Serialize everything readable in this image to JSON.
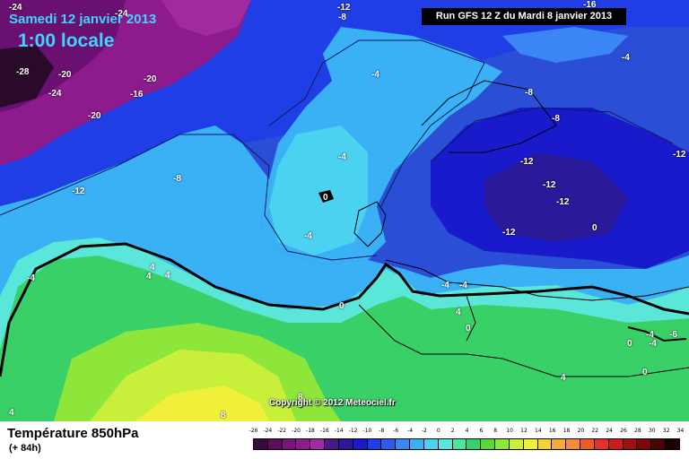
{
  "header": {
    "date": "Samedi 12 janvier 2013",
    "local_time": "1:00 locale",
    "run": "Run GFS 12 Z du Mardi 8 janvier 2013"
  },
  "footer": {
    "variable": "Température 850hPa",
    "lead_time": "(+ 84h)",
    "copyright": "Copyright © 2012 Meteociel.fr"
  },
  "legend": {
    "ticks": [
      "-26",
      "-24",
      "-22",
      "-20",
      "-18",
      "-16",
      "-14",
      "-12",
      "-10",
      "-8",
      "-6",
      "-4",
      "-2",
      "0",
      "2",
      "4",
      "6",
      "8",
      "10",
      "12",
      "14",
      "16",
      "18",
      "20",
      "22",
      "24",
      "26",
      "28",
      "30",
      "32",
      "34"
    ],
    "colors": [
      "#3a0a3a",
      "#5c0d5c",
      "#7a147a",
      "#8e1b8e",
      "#a02aa0",
      "#4a1a8a",
      "#2a1a9a",
      "#1a1acd",
      "#1f3ee6",
      "#2a5cf0",
      "#3a86f5",
      "#3ab0f5",
      "#4ad2f0",
      "#5ae6d8",
      "#4ae6a0",
      "#3ad068",
      "#5ad83a",
      "#8ee63a",
      "#c8f03a",
      "#f0f03a",
      "#f5d23a",
      "#f5aa3a",
      "#f58a3a",
      "#f05a2a",
      "#e6302a",
      "#cd1a1a",
      "#a01010",
      "#7a0a0a",
      "#4a0505",
      "#1a0202"
    ]
  },
  "labels": [
    {
      "t": "-24"
    },
    {
      "t": "-24"
    },
    {
      "t": "-12"
    },
    {
      "t": "-8"
    },
    {
      "t": "-16"
    },
    {
      "t": "-28"
    },
    {
      "t": "-20"
    },
    {
      "t": "-24"
    },
    {
      "t": "-16"
    },
    {
      "t": "-20"
    },
    {
      "t": "-20"
    },
    {
      "t": "-4"
    },
    {
      "t": "-4"
    },
    {
      "t": "-8"
    },
    {
      "t": "-8"
    },
    {
      "t": "-4"
    },
    {
      "t": "-8"
    },
    {
      "t": "-12"
    },
    {
      "t": "-12"
    },
    {
      "t": "-12"
    },
    {
      "t": "-12"
    },
    {
      "t": "-12"
    },
    {
      "t": "-12"
    },
    {
      "t": "0"
    },
    {
      "t": "0"
    },
    {
      "t": "-4"
    },
    {
      "t": "-4"
    },
    {
      "t": "4"
    },
    {
      "t": "4"
    },
    {
      "t": "4"
    },
    {
      "t": "0"
    },
    {
      "t": "-4"
    },
    {
      "t": "-4"
    },
    {
      "t": "4"
    },
    {
      "t": "0"
    },
    {
      "t": "0"
    },
    {
      "t": "-4"
    },
    {
      "t": "-4"
    },
    {
      "t": "-6"
    },
    {
      "t": "0"
    },
    {
      "t": "4"
    },
    {
      "t": "8"
    },
    {
      "t": "8"
    },
    {
      "t": "4"
    }
  ]
}
